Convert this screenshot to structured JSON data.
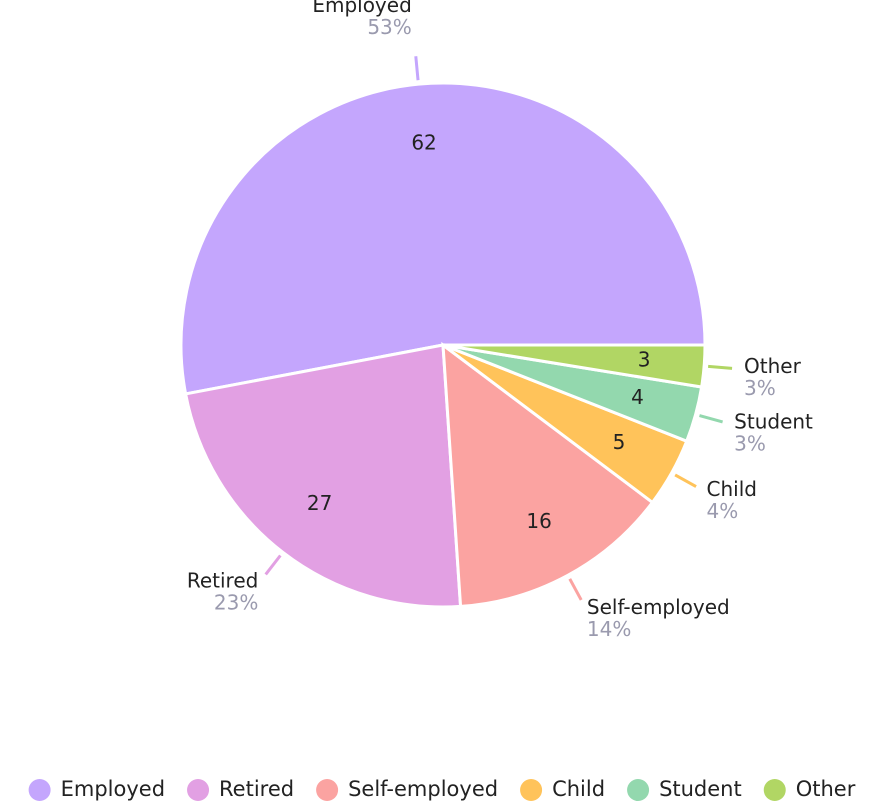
{
  "chart_data": {
    "type": "pie",
    "categories": [
      "Employed",
      "Retired",
      "Self-employed",
      "Child",
      "Student",
      "Other"
    ],
    "values": [
      62,
      27,
      16,
      5,
      4,
      3
    ],
    "percent_labels": [
      "53%",
      "23%",
      "14%",
      "4%",
      "3%",
      "3%"
    ],
    "colors": [
      "#c4a6fd",
      "#e2a0e3",
      "#fba3a1",
      "#ffc35a",
      "#93d8ae",
      "#b1d664"
    ],
    "legend": "bottom"
  }
}
